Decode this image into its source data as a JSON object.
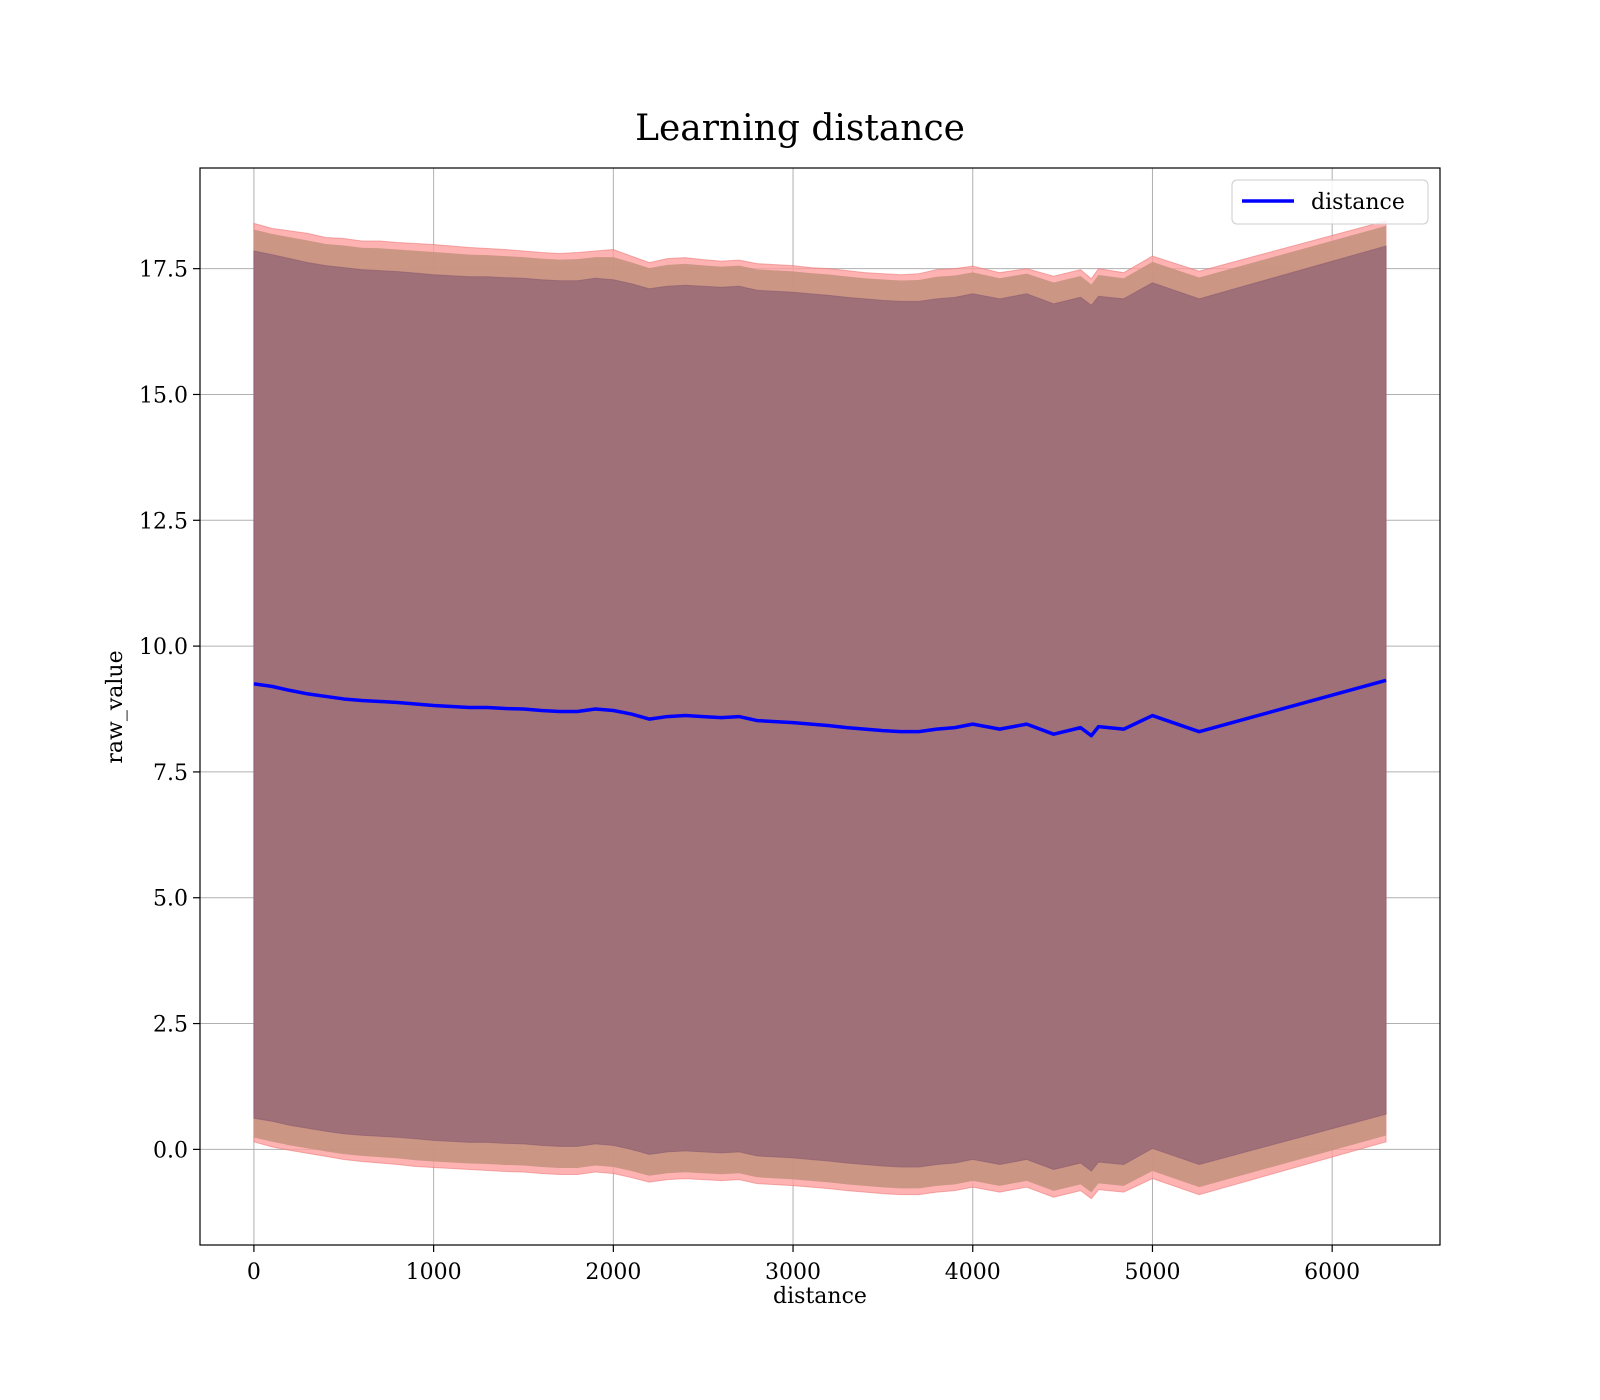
{
  "chart_data": {
    "type": "line",
    "title": "Learning distance",
    "xlabel": "distance",
    "ylabel": "raw_value",
    "xlim": [
      -300,
      6600
    ],
    "ylim": [
      -1.9,
      19.5
    ],
    "xticks": [
      0,
      1000,
      2000,
      3000,
      4000,
      5000,
      6000
    ],
    "xtick_labels": [
      "0",
      "1000",
      "2000",
      "3000",
      "4000",
      "5000",
      "6000"
    ],
    "yticks": [
      0.0,
      2.5,
      5.0,
      7.5,
      10.0,
      12.5,
      15.0,
      17.5
    ],
    "ytick_labels": [
      "0.0",
      "2.5",
      "5.0",
      "7.5",
      "10.0",
      "12.5",
      "15.0",
      "17.5"
    ],
    "grid": true,
    "legend_position": "top-right",
    "series": [
      {
        "name": "distance",
        "color": "#0000ff",
        "x": [
          0,
          100,
          200,
          300,
          400,
          500,
          600,
          700,
          800,
          900,
          1000,
          1100,
          1200,
          1300,
          1400,
          1500,
          1600,
          1700,
          1800,
          1900,
          2000,
          2100,
          2200,
          2300,
          2400,
          2500,
          2600,
          2700,
          2800,
          2900,
          3000,
          3100,
          3200,
          3300,
          3400,
          3500,
          3600,
          3700,
          3800,
          3900,
          4000,
          4150,
          4300,
          4450,
          4600,
          4660,
          4700,
          4840,
          5000,
          5260,
          6300
        ],
        "y": [
          9.25,
          9.2,
          9.12,
          9.05,
          9.0,
          8.95,
          8.92,
          8.9,
          8.88,
          8.85,
          8.82,
          8.8,
          8.78,
          8.78,
          8.76,
          8.75,
          8.72,
          8.7,
          8.7,
          8.75,
          8.72,
          8.65,
          8.55,
          8.6,
          8.62,
          8.6,
          8.58,
          8.6,
          8.52,
          8.5,
          8.48,
          8.45,
          8.42,
          8.38,
          8.35,
          8.32,
          8.3,
          8.3,
          8.35,
          8.38,
          8.45,
          8.35,
          8.45,
          8.25,
          8.38,
          8.22,
          8.4,
          8.35,
          8.62,
          8.3,
          9.32
        ],
        "band_outer_upper": [
          18.4,
          18.3,
          18.25,
          18.2,
          18.12,
          18.1,
          18.05,
          18.05,
          18.02,
          18.0,
          17.98,
          17.95,
          17.92,
          17.9,
          17.88,
          17.85,
          17.82,
          17.8,
          17.82,
          17.85,
          17.88,
          17.75,
          17.62,
          17.7,
          17.72,
          17.68,
          17.65,
          17.67,
          17.6,
          17.58,
          17.56,
          17.52,
          17.5,
          17.46,
          17.42,
          17.4,
          17.38,
          17.4,
          17.48,
          17.5,
          17.55,
          17.42,
          17.5,
          17.35,
          17.48,
          17.3,
          17.5,
          17.42,
          17.75,
          17.45,
          18.45
        ],
        "band_outer_lower": [
          0.15,
          0.05,
          -0.02,
          -0.08,
          -0.14,
          -0.2,
          -0.24,
          -0.27,
          -0.3,
          -0.34,
          -0.36,
          -0.38,
          -0.4,
          -0.42,
          -0.44,
          -0.45,
          -0.48,
          -0.5,
          -0.5,
          -0.45,
          -0.48,
          -0.56,
          -0.65,
          -0.6,
          -0.58,
          -0.6,
          -0.62,
          -0.6,
          -0.68,
          -0.7,
          -0.72,
          -0.75,
          -0.78,
          -0.82,
          -0.85,
          -0.88,
          -0.9,
          -0.9,
          -0.85,
          -0.82,
          -0.75,
          -0.85,
          -0.75,
          -0.95,
          -0.82,
          -0.98,
          -0.8,
          -0.85,
          -0.58,
          -0.9,
          0.15
        ],
        "band_inner_upper": [
          17.85,
          17.78,
          17.7,
          17.62,
          17.56,
          17.52,
          17.48,
          17.46,
          17.44,
          17.41,
          17.38,
          17.36,
          17.34,
          17.34,
          17.32,
          17.31,
          17.28,
          17.26,
          17.26,
          17.31,
          17.28,
          17.2,
          17.1,
          17.15,
          17.17,
          17.15,
          17.13,
          17.15,
          17.07,
          17.05,
          17.03,
          17.0,
          16.97,
          16.93,
          16.9,
          16.87,
          16.85,
          16.85,
          16.9,
          16.93,
          17.0,
          16.9,
          17.0,
          16.8,
          16.93,
          16.77,
          16.95,
          16.9,
          17.22,
          16.9,
          17.95
        ],
        "band_inner_lower": [
          0.62,
          0.56,
          0.48,
          0.42,
          0.36,
          0.31,
          0.28,
          0.26,
          0.24,
          0.21,
          0.18,
          0.16,
          0.14,
          0.14,
          0.12,
          0.11,
          0.08,
          0.06,
          0.06,
          0.11,
          0.08,
          0.0,
          -0.1,
          -0.05,
          -0.03,
          -0.05,
          -0.07,
          -0.05,
          -0.13,
          -0.15,
          -0.17,
          -0.2,
          -0.23,
          -0.27,
          -0.3,
          -0.33,
          -0.35,
          -0.35,
          -0.3,
          -0.27,
          -0.2,
          -0.3,
          -0.2,
          -0.4,
          -0.27,
          -0.43,
          -0.25,
          -0.3,
          0.02,
          -0.3,
          0.7
        ]
      }
    ]
  }
}
